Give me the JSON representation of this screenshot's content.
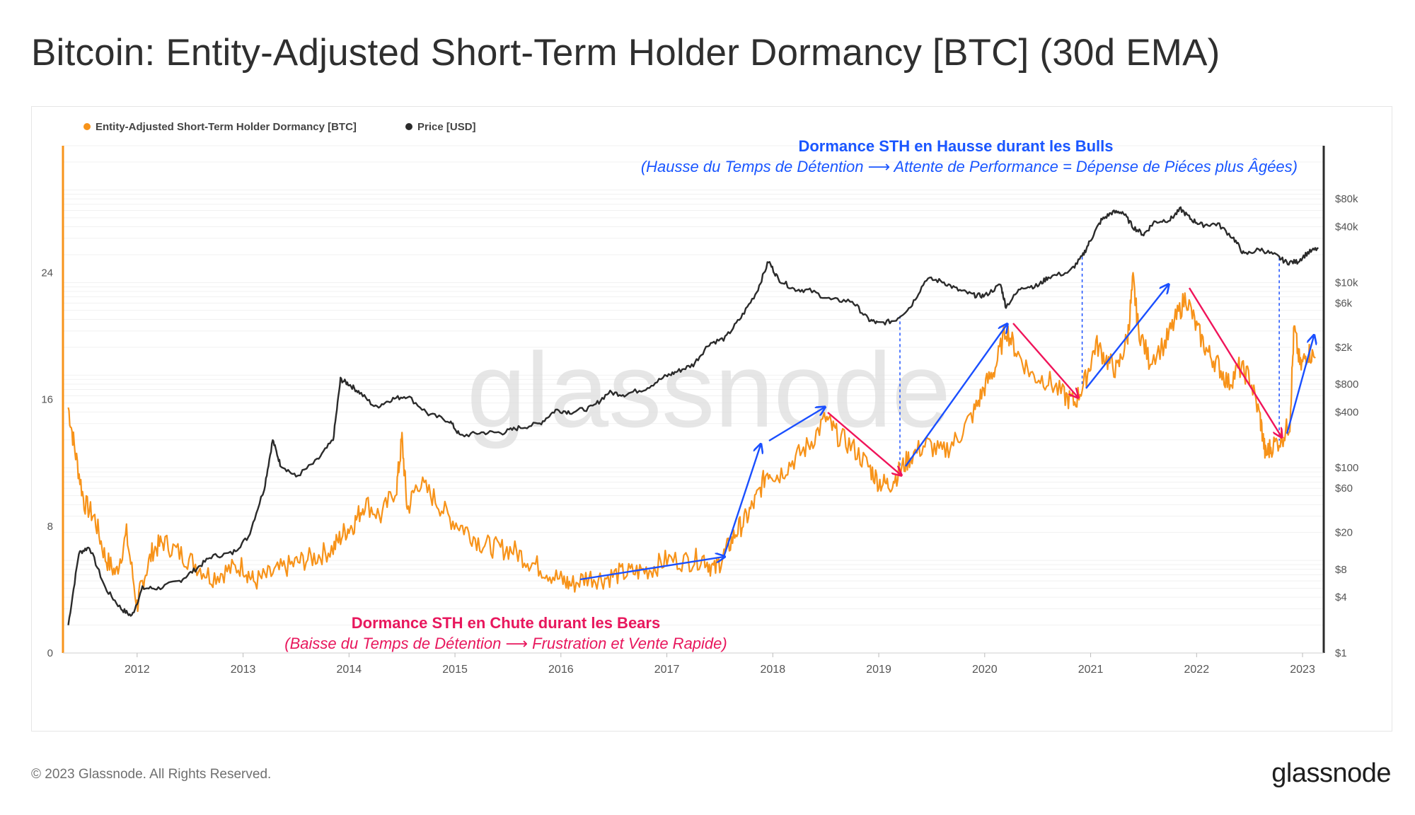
{
  "title": "Bitcoin: Entity-Adjusted Short-Term Holder Dormancy [BTC] (30d EMA)",
  "footer": {
    "copyright": "© 2023 Glassnode. All Rights Reserved.",
    "brand": "glassnode"
  },
  "watermark": "glassnode",
  "colors": {
    "dormancy": "#f7931a",
    "price": "#2b2b2b",
    "bull_arrow": "#1a4fff",
    "bear_arrow": "#f0145a",
    "bull_text": "#1a56ff",
    "bear_text": "#e8175d"
  },
  "annotations": {
    "bull_title": "Dormance STH en Hausse durant les Bulls",
    "bull_subtitle": "(Hausse du Temps de Détention ⟶ Attente de Performance = Dépense de Piéces plus Âgées)",
    "bear_title": "Dormance STH en Chute durant les Bears",
    "bear_subtitle": "(Baisse du Temps de Détention ⟶ Frustration et Vente Rapide)"
  },
  "chart_data": {
    "type": "line",
    "legend": {
      "placement": "top-left",
      "entries": [
        "Entity-Adjusted Short-Term Holder Dormancy [BTC]",
        "Price [USD]"
      ]
    },
    "x_range": [
      2011.3,
      2023.2
    ],
    "x_ticks": [
      {
        "value": 2012,
        "label": "2012"
      },
      {
        "value": 2013,
        "label": "2013"
      },
      {
        "value": 2014,
        "label": "2014"
      },
      {
        "value": 2015,
        "label": "2015"
      },
      {
        "value": 2016,
        "label": "2016"
      },
      {
        "value": 2017,
        "label": "2017"
      },
      {
        "value": 2018,
        "label": "2018"
      },
      {
        "value": 2019,
        "label": "2019"
      },
      {
        "value": 2020,
        "label": "2020"
      },
      {
        "value": 2021,
        "label": "2021"
      },
      {
        "value": 2022,
        "label": "2022"
      },
      {
        "value": 2023,
        "label": "2023"
      }
    ],
    "y_left": {
      "range": [
        0,
        32
      ],
      "ticks": [
        {
          "value": 0,
          "label": "0"
        },
        {
          "value": 8,
          "label": "8"
        },
        {
          "value": 16,
          "label": "16"
        },
        {
          "value": 24,
          "label": "24"
        }
      ]
    },
    "y_right": {
      "scale": "log",
      "range": [
        1,
        300000
      ],
      "ticks": [
        {
          "value": 1,
          "label": "$1"
        },
        {
          "value": 4,
          "label": "$4"
        },
        {
          "value": 8,
          "label": "$8"
        },
        {
          "value": 20,
          "label": "$20"
        },
        {
          "value": 60,
          "label": "$60"
        },
        {
          "value": 100,
          "label": "$100"
        },
        {
          "value": 400,
          "label": "$400"
        },
        {
          "value": 800,
          "label": "$800"
        },
        {
          "value": 2000,
          "label": "$2k"
        },
        {
          "value": 6000,
          "label": "$6k"
        },
        {
          "value": 10000,
          "label": "$10k"
        },
        {
          "value": 40000,
          "label": "$40k"
        },
        {
          "value": 80000,
          "label": "$80k"
        }
      ]
    },
    "series": [
      {
        "name": "Entity-Adjusted Short-Term Holder Dormancy [BTC]",
        "axis": "left",
        "points": [
          [
            2011.35,
            15.5
          ],
          [
            2011.42,
            12.5
          ],
          [
            2011.5,
            9.5
          ],
          [
            2011.6,
            8.5
          ],
          [
            2011.7,
            6.0
          ],
          [
            2011.8,
            5.0
          ],
          [
            2011.9,
            7.5
          ],
          [
            2012.0,
            3.0
          ],
          [
            2012.05,
            4.5
          ],
          [
            2012.15,
            6.5
          ],
          [
            2012.25,
            7.0
          ],
          [
            2012.4,
            6.3
          ],
          [
            2012.55,
            5.6
          ],
          [
            2012.7,
            4.8
          ],
          [
            2012.85,
            5.2
          ],
          [
            2013.0,
            5.5
          ],
          [
            2013.1,
            4.5
          ],
          [
            2013.25,
            4.9
          ],
          [
            2013.4,
            5.4
          ],
          [
            2013.55,
            5.8
          ],
          [
            2013.7,
            6.1
          ],
          [
            2013.85,
            6.6
          ],
          [
            2013.95,
            7.6
          ],
          [
            2014.05,
            8.2
          ],
          [
            2014.15,
            9.5
          ],
          [
            2014.3,
            8.6
          ],
          [
            2014.45,
            10.5
          ],
          [
            2014.5,
            13.5
          ],
          [
            2014.55,
            9.0
          ],
          [
            2014.65,
            10.8
          ],
          [
            2014.8,
            9.8
          ],
          [
            2014.95,
            8.5
          ],
          [
            2015.1,
            7.8
          ],
          [
            2015.25,
            6.9
          ],
          [
            2015.4,
            6.6
          ],
          [
            2015.55,
            6.5
          ],
          [
            2015.7,
            5.8
          ],
          [
            2015.85,
            5.2
          ],
          [
            2016.0,
            4.6
          ],
          [
            2016.1,
            4.3
          ],
          [
            2016.25,
            4.8
          ],
          [
            2016.4,
            4.7
          ],
          [
            2016.55,
            5.0
          ],
          [
            2016.7,
            5.1
          ],
          [
            2016.85,
            5.3
          ],
          [
            2017.0,
            5.9
          ],
          [
            2017.2,
            5.8
          ],
          [
            2017.35,
            6.0
          ],
          [
            2017.45,
            5.2
          ],
          [
            2017.55,
            6.3
          ],
          [
            2017.65,
            7.6
          ],
          [
            2017.75,
            8.5
          ],
          [
            2017.85,
            9.8
          ],
          [
            2017.95,
            11.5
          ],
          [
            2018.05,
            11.2
          ],
          [
            2018.2,
            12.2
          ],
          [
            2018.35,
            13.2
          ],
          [
            2018.5,
            14.8
          ],
          [
            2018.6,
            13.8
          ],
          [
            2018.75,
            13.0
          ],
          [
            2018.9,
            11.8
          ],
          [
            2019.0,
            10.8
          ],
          [
            2019.1,
            10.6
          ],
          [
            2019.2,
            11.5
          ],
          [
            2019.3,
            12.4
          ],
          [
            2019.45,
            13.2
          ],
          [
            2019.6,
            12.6
          ],
          [
            2019.75,
            13.6
          ],
          [
            2019.9,
            15.2
          ],
          [
            2020.0,
            16.8
          ],
          [
            2020.1,
            18.0
          ],
          [
            2020.2,
            20.5
          ],
          [
            2020.3,
            19.0
          ],
          [
            2020.45,
            17.5
          ],
          [
            2020.6,
            17.2
          ],
          [
            2020.75,
            16.2
          ],
          [
            2020.85,
            15.8
          ],
          [
            2020.95,
            17.2
          ],
          [
            2021.05,
            19.5
          ],
          [
            2021.15,
            18.5
          ],
          [
            2021.25,
            17.8
          ],
          [
            2021.35,
            20.0
          ],
          [
            2021.4,
            23.5
          ],
          [
            2021.45,
            20.5
          ],
          [
            2021.55,
            18.5
          ],
          [
            2021.7,
            19.5
          ],
          [
            2021.8,
            21.0
          ],
          [
            2021.9,
            22.5
          ],
          [
            2022.0,
            20.5
          ],
          [
            2022.1,
            19.0
          ],
          [
            2022.2,
            18.2
          ],
          [
            2022.3,
            17.0
          ],
          [
            2022.4,
            18.0
          ],
          [
            2022.5,
            17.4
          ],
          [
            2022.6,
            14.8
          ],
          [
            2022.65,
            12.5
          ],
          [
            2022.7,
            13.0
          ],
          [
            2022.8,
            13.5
          ],
          [
            2022.88,
            14.5
          ],
          [
            2022.92,
            20.5
          ],
          [
            2022.98,
            18.0
          ],
          [
            2023.05,
            19.0
          ],
          [
            2023.12,
            18.6
          ]
        ]
      },
      {
        "name": "Price [USD]",
        "axis": "right",
        "points": [
          [
            2011.35,
            2
          ],
          [
            2011.45,
            12
          ],
          [
            2011.55,
            14
          ],
          [
            2011.7,
            5
          ],
          [
            2011.85,
            3
          ],
          [
            2011.95,
            2.5
          ],
          [
            2012.05,
            5
          ],
          [
            2012.2,
            5
          ],
          [
            2012.4,
            6
          ],
          [
            2012.55,
            8
          ],
          [
            2012.7,
            11
          ],
          [
            2012.9,
            12
          ],
          [
            2013.05,
            18
          ],
          [
            2013.2,
            60
          ],
          [
            2013.28,
            200
          ],
          [
            2013.35,
            110
          ],
          [
            2013.5,
            80
          ],
          [
            2013.7,
            120
          ],
          [
            2013.85,
            200
          ],
          [
            2013.92,
            900
          ],
          [
            2014.0,
            800
          ],
          [
            2014.1,
            650
          ],
          [
            2014.25,
            450
          ],
          [
            2014.4,
            550
          ],
          [
            2014.55,
            600
          ],
          [
            2014.75,
            380
          ],
          [
            2014.95,
            320
          ],
          [
            2015.05,
            220
          ],
          [
            2015.25,
            240
          ],
          [
            2015.45,
            240
          ],
          [
            2015.6,
            270
          ],
          [
            2015.8,
            300
          ],
          [
            2015.95,
            420
          ],
          [
            2016.1,
            400
          ],
          [
            2016.3,
            450
          ],
          [
            2016.45,
            650
          ],
          [
            2016.6,
            620
          ],
          [
            2016.8,
            720
          ],
          [
            2016.98,
            960
          ],
          [
            2017.1,
            1100
          ],
          [
            2017.25,
            1300
          ],
          [
            2017.4,
            2200
          ],
          [
            2017.55,
            2500
          ],
          [
            2017.7,
            4200
          ],
          [
            2017.85,
            8000
          ],
          [
            2017.96,
            17000
          ],
          [
            2018.05,
            11000
          ],
          [
            2018.2,
            8500
          ],
          [
            2018.35,
            8200
          ],
          [
            2018.55,
            6500
          ],
          [
            2018.75,
            6300
          ],
          [
            2018.9,
            4000
          ],
          [
            2019.0,
            3600
          ],
          [
            2019.15,
            3900
          ],
          [
            2019.3,
            5500
          ],
          [
            2019.45,
            11000
          ],
          [
            2019.6,
            10300
          ],
          [
            2019.75,
            8300
          ],
          [
            2019.9,
            7300
          ],
          [
            2020.0,
            7200
          ],
          [
            2020.15,
            9500
          ],
          [
            2020.2,
            5500
          ],
          [
            2020.35,
            9000
          ],
          [
            2020.5,
            9200
          ],
          [
            2020.6,
            11500
          ],
          [
            2020.8,
            13000
          ],
          [
            2020.92,
            19000
          ],
          [
            2021.0,
            29000
          ],
          [
            2021.1,
            47000
          ],
          [
            2021.2,
            57000
          ],
          [
            2021.3,
            58000
          ],
          [
            2021.4,
            40000
          ],
          [
            2021.5,
            33000
          ],
          [
            2021.6,
            45000
          ],
          [
            2021.75,
            48000
          ],
          [
            2021.85,
            62000
          ],
          [
            2021.95,
            48000
          ],
          [
            2022.05,
            42000
          ],
          [
            2022.2,
            43000
          ],
          [
            2022.35,
            30000
          ],
          [
            2022.45,
            20000
          ],
          [
            2022.6,
            23000
          ],
          [
            2022.75,
            19500
          ],
          [
            2022.85,
            16500
          ],
          [
            2022.95,
            16800
          ],
          [
            2023.05,
            21000
          ],
          [
            2023.15,
            23500
          ]
        ]
      }
    ],
    "markers": [
      2019.2,
      2020.92,
      2022.78
    ]
  }
}
